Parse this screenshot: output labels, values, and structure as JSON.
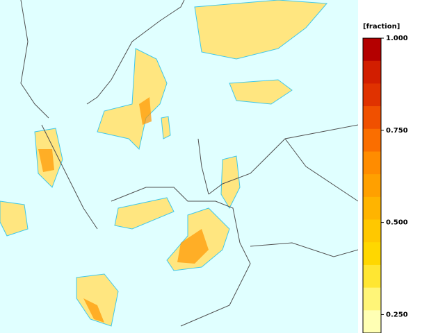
{
  "legend": {
    "title": "[fraction]",
    "lim": [
      0.2,
      1.0
    ],
    "ticks": [
      {
        "value": 1.0,
        "label": "1.000"
      },
      {
        "value": 0.75,
        "label": "0.750"
      },
      {
        "value": 0.5,
        "label": "0.500"
      },
      {
        "value": 0.25,
        "label": "0.250"
      }
    ],
    "colors": [
      "#b40000",
      "#d21e00",
      "#e03200",
      "#f05000",
      "#fa6e00",
      "#ff8c00",
      "#ffa000",
      "#ffb400",
      "#ffc800",
      "#ffd700",
      "#ffe632",
      "#fff578",
      "#ffffb4"
    ]
  }
}
